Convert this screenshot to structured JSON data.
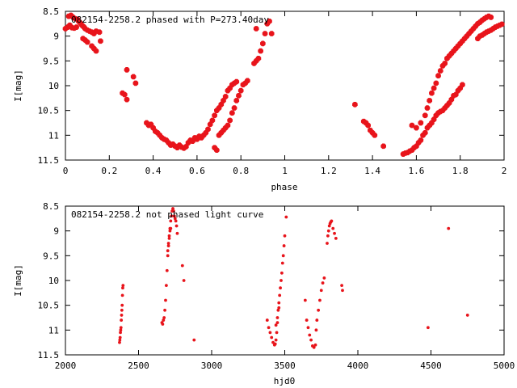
{
  "chart_data": [
    {
      "type": "scatter",
      "title": "082154-2258.2 phased with P=273.40day",
      "xlabel": "phase",
      "ylabel": "I[mag]",
      "xlim": [
        0,
        2
      ],
      "ylim": [
        11.5,
        8.5
      ],
      "y_inverted": true,
      "xticks": [
        "0",
        "0.2",
        "0.4",
        "0.6",
        "0.8",
        "1",
        "1.2",
        "1.4",
        "1.6",
        "1.8",
        "2"
      ],
      "yticks": [
        "8.5",
        "9",
        "9.5",
        "10",
        "10.5",
        "11",
        "11.5"
      ],
      "marker": "star",
      "color": "#e8141b",
      "grid": false,
      "points": [
        [
          0.0,
          8.85
        ],
        [
          0.01,
          8.82
        ],
        [
          0.015,
          8.6
        ],
        [
          0.02,
          8.78
        ],
        [
          0.025,
          8.58
        ],
        [
          0.03,
          8.83
        ],
        [
          0.035,
          8.62
        ],
        [
          0.04,
          8.84
        ],
        [
          0.045,
          8.65
        ],
        [
          0.05,
          8.82
        ],
        [
          0.055,
          8.66
        ],
        [
          0.06,
          8.7
        ],
        [
          0.065,
          8.72
        ],
        [
          0.07,
          8.75
        ],
        [
          0.075,
          8.78
        ],
        [
          0.08,
          8.8
        ],
        [
          0.085,
          8.82
        ],
        [
          0.09,
          8.85
        ],
        [
          0.1,
          8.88
        ],
        [
          0.11,
          8.9
        ],
        [
          0.12,
          8.92
        ],
        [
          0.13,
          8.95
        ],
        [
          0.14,
          8.9
        ],
        [
          0.155,
          8.92
        ],
        [
          0.08,
          9.05
        ],
        [
          0.09,
          9.08
        ],
        [
          0.1,
          9.12
        ],
        [
          0.12,
          9.2
        ],
        [
          0.13,
          9.25
        ],
        [
          0.14,
          9.3
        ],
        [
          0.16,
          9.1
        ],
        [
          0.28,
          9.68
        ],
        [
          0.31,
          9.82
        ],
        [
          0.32,
          9.95
        ],
        [
          0.26,
          10.15
        ],
        [
          0.27,
          10.18
        ],
        [
          0.28,
          10.28
        ],
        [
          0.37,
          10.75
        ],
        [
          0.38,
          10.8
        ],
        [
          0.39,
          10.78
        ],
        [
          0.4,
          10.85
        ],
        [
          0.41,
          10.92
        ],
        [
          0.42,
          10.95
        ],
        [
          0.43,
          11.0
        ],
        [
          0.44,
          11.05
        ],
        [
          0.45,
          11.08
        ],
        [
          0.46,
          11.1
        ],
        [
          0.47,
          11.15
        ],
        [
          0.48,
          11.2
        ],
        [
          0.49,
          11.18
        ],
        [
          0.5,
          11.22
        ],
        [
          0.51,
          11.25
        ],
        [
          0.52,
          11.2
        ],
        [
          0.53,
          11.24
        ],
        [
          0.54,
          11.26
        ],
        [
          0.55,
          11.23
        ],
        [
          0.56,
          11.15
        ],
        [
          0.57,
          11.1
        ],
        [
          0.58,
          11.12
        ],
        [
          0.59,
          11.05
        ],
        [
          0.6,
          11.08
        ],
        [
          0.61,
          11.02
        ],
        [
          0.62,
          11.05
        ],
        [
          0.63,
          11.0
        ],
        [
          0.64,
          10.95
        ],
        [
          0.65,
          10.88
        ],
        [
          0.66,
          10.78
        ],
        [
          0.67,
          10.7
        ],
        [
          0.68,
          10.6
        ],
        [
          0.69,
          10.5
        ],
        [
          0.7,
          10.45
        ],
        [
          0.71,
          10.38
        ],
        [
          0.72,
          10.3
        ],
        [
          0.73,
          10.22
        ],
        [
          0.74,
          10.1
        ],
        [
          0.75,
          10.05
        ],
        [
          0.76,
          9.98
        ],
        [
          0.77,
          9.95
        ],
        [
          0.78,
          9.92
        ],
        [
          0.68,
          11.25
        ],
        [
          0.69,
          11.3
        ],
        [
          0.7,
          11.0
        ],
        [
          0.71,
          10.95
        ],
        [
          0.72,
          10.9
        ],
        [
          0.73,
          10.85
        ],
        [
          0.74,
          10.8
        ],
        [
          0.75,
          10.7
        ],
        [
          0.76,
          10.55
        ],
        [
          0.77,
          10.45
        ],
        [
          0.78,
          10.3
        ],
        [
          0.79,
          10.2
        ],
        [
          0.8,
          10.1
        ],
        [
          0.81,
          9.98
        ],
        [
          0.82,
          9.95
        ],
        [
          0.83,
          9.9
        ],
        [
          0.86,
          9.55
        ],
        [
          0.87,
          9.5
        ],
        [
          0.88,
          9.45
        ],
        [
          0.89,
          9.3
        ],
        [
          0.9,
          9.15
        ],
        [
          0.91,
          8.95
        ],
        [
          0.92,
          8.75
        ],
        [
          0.93,
          8.7
        ],
        [
          0.94,
          8.95
        ],
        [
          0.87,
          8.85
        ],
        [
          1.32,
          10.38
        ],
        [
          1.36,
          10.72
        ],
        [
          1.37,
          10.75
        ],
        [
          1.38,
          10.8
        ],
        [
          1.39,
          10.9
        ],
        [
          1.4,
          10.95
        ],
        [
          1.41,
          11.0
        ],
        [
          1.45,
          11.22
        ],
        [
          1.54,
          11.38
        ],
        [
          1.55,
          11.36
        ],
        [
          1.56,
          11.35
        ],
        [
          1.57,
          11.32
        ],
        [
          1.58,
          11.3
        ],
        [
          1.59,
          11.25
        ],
        [
          1.6,
          11.22
        ],
        [
          1.61,
          11.15
        ],
        [
          1.62,
          11.1
        ],
        [
          1.63,
          11.0
        ],
        [
          1.64,
          10.95
        ],
        [
          1.65,
          10.85
        ],
        [
          1.66,
          10.8
        ],
        [
          1.67,
          10.75
        ],
        [
          1.68,
          10.68
        ],
        [
          1.69,
          10.6
        ],
        [
          1.7,
          10.55
        ],
        [
          1.71,
          10.52
        ],
        [
          1.72,
          10.5
        ],
        [
          1.73,
          10.45
        ],
        [
          1.74,
          10.4
        ],
        [
          1.75,
          10.35
        ],
        [
          1.76,
          10.28
        ],
        [
          1.77,
          10.2
        ],
        [
          1.78,
          10.18
        ],
        [
          1.79,
          10.1
        ],
        [
          1.8,
          10.05
        ],
        [
          1.81,
          9.98
        ],
        [
          1.58,
          10.8
        ],
        [
          1.6,
          10.85
        ],
        [
          1.62,
          10.75
        ],
        [
          1.64,
          10.6
        ],
        [
          1.65,
          10.45
        ],
        [
          1.66,
          10.3
        ],
        [
          1.67,
          10.15
        ],
        [
          1.68,
          10.05
        ],
        [
          1.69,
          9.95
        ],
        [
          1.7,
          9.8
        ],
        [
          1.71,
          9.7
        ],
        [
          1.72,
          9.6
        ],
        [
          1.73,
          9.55
        ],
        [
          1.74,
          9.45
        ],
        [
          1.75,
          9.4
        ],
        [
          1.76,
          9.35
        ],
        [
          1.77,
          9.3
        ],
        [
          1.78,
          9.25
        ],
        [
          1.79,
          9.2
        ],
        [
          1.8,
          9.15
        ],
        [
          1.81,
          9.1
        ],
        [
          1.82,
          9.05
        ],
        [
          1.83,
          9.0
        ],
        [
          1.84,
          8.95
        ],
        [
          1.85,
          8.9
        ],
        [
          1.86,
          8.85
        ],
        [
          1.87,
          8.8
        ],
        [
          1.88,
          8.75
        ],
        [
          1.89,
          8.72
        ],
        [
          1.9,
          8.68
        ],
        [
          1.91,
          8.65
        ],
        [
          1.92,
          8.62
        ],
        [
          1.93,
          8.6
        ],
        [
          1.94,
          8.62
        ],
        [
          1.88,
          9.05
        ],
        [
          1.89,
          9.0
        ],
        [
          1.9,
          8.98
        ],
        [
          1.91,
          8.95
        ],
        [
          1.92,
          8.92
        ],
        [
          1.93,
          8.9
        ],
        [
          1.94,
          8.88
        ],
        [
          1.95,
          8.85
        ],
        [
          1.96,
          8.82
        ],
        [
          1.97,
          8.8
        ],
        [
          1.98,
          8.78
        ],
        [
          1.99,
          8.76
        ]
      ]
    },
    {
      "type": "scatter",
      "title": "082154-2258.2 not phased light curve",
      "xlabel": "hjd0",
      "ylabel": "I[mag]",
      "xlim": [
        2000,
        5000
      ],
      "ylim": [
        11.5,
        8.5
      ],
      "y_inverted": true,
      "xticks": [
        "2000",
        "2500",
        "3000",
        "3500",
        "4000",
        "4500",
        "5000"
      ],
      "yticks": [
        "8.5",
        "9",
        "9.5",
        "10",
        "10.5",
        "11",
        "11.5"
      ],
      "marker": "dot",
      "color": "#e8141b",
      "grid": false,
      "points": [
        [
          2370,
          11.25
        ],
        [
          2372,
          11.2
        ],
        [
          2374,
          11.15
        ],
        [
          2376,
          11.05
        ],
        [
          2378,
          11.0
        ],
        [
          2380,
          10.95
        ],
        [
          2382,
          10.8
        ],
        [
          2384,
          10.7
        ],
        [
          2386,
          10.6
        ],
        [
          2388,
          10.5
        ],
        [
          2390,
          10.3
        ],
        [
          2392,
          10.15
        ],
        [
          2394,
          10.1
        ],
        [
          2660,
          10.85
        ],
        [
          2665,
          10.88
        ],
        [
          2670,
          10.8
        ],
        [
          2675,
          10.75
        ],
        [
          2680,
          10.6
        ],
        [
          2685,
          10.4
        ],
        [
          2690,
          10.1
        ],
        [
          2695,
          9.8
        ],
        [
          2700,
          9.5
        ],
        [
          2705,
          9.3
        ],
        [
          2710,
          9.1
        ],
        [
          2715,
          8.95
        ],
        [
          2720,
          8.8
        ],
        [
          2725,
          8.7
        ],
        [
          2730,
          8.6
        ],
        [
          2735,
          8.55
        ],
        [
          2740,
          8.6
        ],
        [
          2745,
          8.7
        ],
        [
          2750,
          8.75
        ],
        [
          2755,
          8.8
        ],
        [
          2760,
          8.9
        ],
        [
          2765,
          9.05
        ],
        [
          2700,
          9.4
        ],
        [
          2705,
          9.25
        ],
        [
          2710,
          9.15
        ],
        [
          2715,
          9.0
        ],
        [
          2720,
          8.95
        ],
        [
          2800,
          9.7
        ],
        [
          2810,
          10.0
        ],
        [
          2880,
          11.2
        ],
        [
          3380,
          10.8
        ],
        [
          3390,
          10.95
        ],
        [
          3400,
          11.05
        ],
        [
          3410,
          11.15
        ],
        [
          3420,
          11.25
        ],
        [
          3430,
          11.3
        ],
        [
          3435,
          11.28
        ],
        [
          3440,
          11.2
        ],
        [
          3445,
          11.05
        ],
        [
          3450,
          10.85
        ],
        [
          3455,
          10.6
        ],
        [
          3460,
          10.45
        ],
        [
          3465,
          10.3
        ],
        [
          3470,
          10.15
        ],
        [
          3475,
          10.0
        ],
        [
          3480,
          9.85
        ],
        [
          3485,
          9.65
        ],
        [
          3490,
          9.5
        ],
        [
          3495,
          9.3
        ],
        [
          3500,
          9.1
        ],
        [
          3510,
          8.72
        ],
        [
          3440,
          10.9
        ],
        [
          3450,
          10.75
        ],
        [
          3460,
          10.55
        ],
        [
          3640,
          10.4
        ],
        [
          3650,
          10.8
        ],
        [
          3660,
          10.95
        ],
        [
          3670,
          11.1
        ],
        [
          3680,
          11.2
        ],
        [
          3690,
          11.32
        ],
        [
          3700,
          11.35
        ],
        [
          3710,
          11.3
        ],
        [
          3715,
          11.0
        ],
        [
          3720,
          10.8
        ],
        [
          3730,
          10.6
        ],
        [
          3740,
          10.4
        ],
        [
          3750,
          10.2
        ],
        [
          3760,
          10.05
        ],
        [
          3770,
          9.95
        ],
        [
          3790,
          9.25
        ],
        [
          3795,
          9.1
        ],
        [
          3800,
          9.0
        ],
        [
          3805,
          8.9
        ],
        [
          3810,
          8.85
        ],
        [
          3815,
          8.82
        ],
        [
          3820,
          8.8
        ],
        [
          3830,
          8.95
        ],
        [
          3840,
          9.05
        ],
        [
          3850,
          9.15
        ],
        [
          3890,
          10.1
        ],
        [
          3895,
          10.2
        ],
        [
          4480,
          10.95
        ],
        [
          4620,
          8.95
        ],
        [
          4750,
          10.7
        ]
      ]
    }
  ]
}
